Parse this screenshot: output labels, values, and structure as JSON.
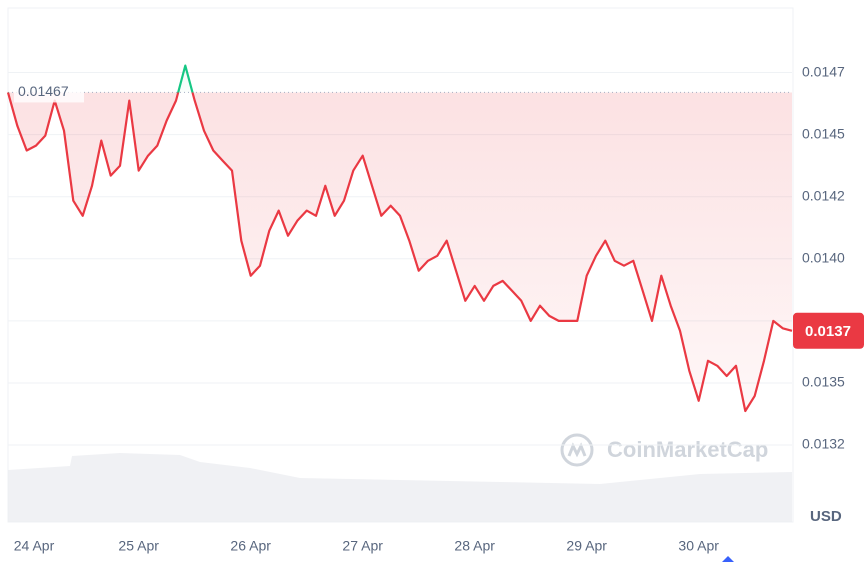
{
  "chart_data": {
    "type": "line",
    "categories": [
      null,
      null,
      "24 Apr",
      null,
      null,
      null,
      null,
      null,
      null,
      null,
      null,
      null,
      null,
      null,
      "25 Apr",
      null,
      null,
      null,
      null,
      null,
      null,
      null,
      null,
      null,
      null,
      null,
      "26 Apr",
      null,
      null,
      null,
      null,
      null,
      null,
      null,
      null,
      null,
      null,
      null,
      "27 Apr",
      null,
      null,
      null,
      null,
      null,
      null,
      null,
      null,
      null,
      null,
      null,
      "28 Apr",
      null,
      null,
      null,
      null,
      null,
      null,
      null,
      null,
      null,
      null,
      null,
      "29 Apr",
      null,
      null,
      null,
      null,
      null,
      null,
      null,
      null,
      null,
      null,
      null,
      "30 Apr",
      null,
      null,
      null,
      null,
      null,
      null,
      null,
      null,
      null,
      null
    ],
    "values": [
      0.01467,
      0.014536,
      0.014436,
      0.014456,
      0.014496,
      0.014637,
      0.014516,
      0.014234,
      0.014173,
      0.014294,
      0.014476,
      0.014335,
      0.014375,
      0.014637,
      0.014355,
      0.014415,
      0.014456,
      0.014557,
      0.014637,
      0.014778,
      0.014637,
      0.014516,
      0.014436,
      0.014395,
      0.014355,
      0.014073,
      0.013932,
      0.013972,
      0.014113,
      0.014194,
      0.014093,
      0.014153,
      0.014194,
      0.014173,
      0.014294,
      0.014173,
      0.014234,
      0.014355,
      0.014415,
      0.014294,
      0.014173,
      0.014214,
      0.014173,
      0.014073,
      0.013952,
      0.013992,
      0.014012,
      0.014073,
      0.013952,
      0.013831,
      0.013891,
      0.013831,
      0.013891,
      0.013911,
      0.013871,
      0.013831,
      0.01375,
      0.013811,
      0.01377,
      0.01375,
      0.01375,
      0.01375,
      0.013932,
      0.014012,
      0.014073,
      0.013992,
      0.013972,
      0.013992,
      0.013871,
      0.01375,
      0.013932,
      0.013811,
      0.01371,
      0.013549,
      0.013428,
      0.013589,
      0.013569,
      0.013528,
      0.013569,
      0.013387,
      0.013448,
      0.013589,
      0.01375,
      0.01372,
      0.01371
    ],
    "color": "#ea3943",
    "color_above": "#16c784",
    "reference_value": 0.01467,
    "current_price": {
      "value": 0.01371,
      "label": "0.0137"
    },
    "ylim": [
      0.01294,
      0.01501
    ],
    "yticks": [
      {
        "value": 0.01325,
        "label": "0.0132"
      },
      {
        "value": 0.0135,
        "label": "0.0135"
      },
      {
        "value": 0.01375,
        "label": "0.0137"
      },
      {
        "value": 0.014,
        "label": "0.0140"
      },
      {
        "value": 0.01425,
        "label": "0.0142"
      },
      {
        "value": 0.0145,
        "label": "0.0145"
      },
      {
        "value": 0.01475,
        "label": "0.0147"
      }
    ],
    "y_unit": "USD",
    "watermark": "CoinMarketCap",
    "grid": true
  }
}
